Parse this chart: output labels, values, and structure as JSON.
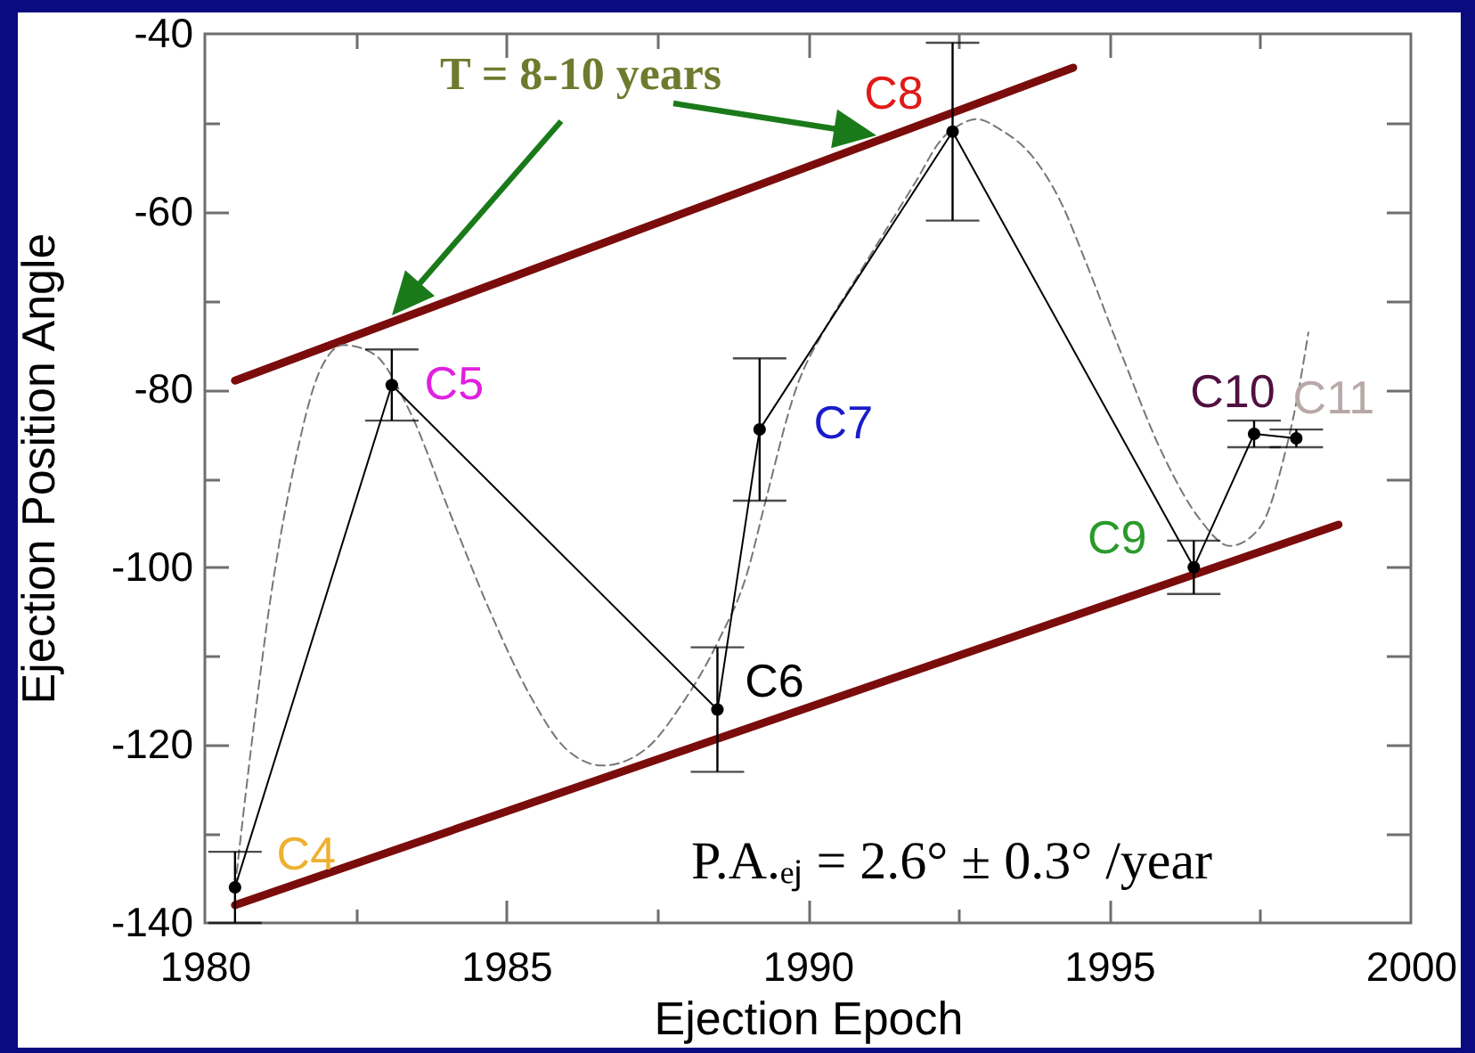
{
  "chart_data": {
    "type": "line",
    "xlabel": "Ejection Epoch",
    "ylabel": "Ejection Position Angle",
    "xlim": [
      1980,
      2000
    ],
    "ylim": [
      -140,
      -40
    ],
    "xticks": [
      1980,
      {
        "value": 1982.5,
        "label": null
      },
      1985,
      {
        "value": 1987.5,
        "label": null
      },
      1990,
      {
        "value": 1992.5,
        "label": null
      },
      1995,
      {
        "value": 1997.5,
        "label": null
      },
      2000
    ],
    "yticks": [
      -140,
      {
        "value": -130,
        "label": null
      },
      -120,
      {
        "value": -110,
        "label": null
      },
      -100,
      {
        "value": -90,
        "label": null
      },
      -80,
      {
        "value": -70,
        "label": null
      },
      -60,
      {
        "value": -50,
        "label": null
      },
      -40
    ],
    "grid": false,
    "series": [
      {
        "color": "#7b0c0c",
        "x": [
          1980.5,
          1994.4
        ],
        "values": [
          -79,
          -43.8
        ]
      },
      {
        "color": "#7b0c0c",
        "x": [
          1980.5,
          1998.8
        ],
        "values": [
          -138,
          -95.2
        ]
      },
      {
        "color": "#777777",
        "line_style": "dashed",
        "x": [
          1980.5,
          1980.8,
          1981.1,
          1981.5,
          1981.9,
          1982.3,
          1982.8,
          1983.4,
          1984.1,
          1984.7,
          1985.4,
          1986,
          1986.6,
          1987.3,
          1987.9,
          1988.5,
          1989,
          1989.3,
          1989.8,
          1990.3,
          1990.8,
          1991.3,
          1991.8,
          1992.2,
          1992.5,
          1992.8,
          1993.2,
          1993.7,
          1994.2,
          1994.6,
          1995.2,
          1995.9,
          1996.5,
          1997,
          1997.5,
          1997.9,
          1998.1,
          1998.3
        ],
        "values": [
          -136,
          -118.5,
          -103,
          -88,
          -78,
          -75,
          -76,
          -82.5,
          -94.5,
          -104.5,
          -114.5,
          -120.5,
          -122.3,
          -120.5,
          -115.5,
          -108.5,
          -100.5,
          -92.5,
          -80,
          -73,
          -67.5,
          -62,
          -56.5,
          -52,
          -50.3,
          -49.6,
          -50.8,
          -53.6,
          -59,
          -65.5,
          -76,
          -87.5,
          -94.6,
          -97.6,
          -95.5,
          -87.5,
          -81.5,
          -73.6
        ]
      },
      {
        "color": "#000000",
        "marker": "circle",
        "x": [
          1980.5,
          1983.1,
          1988.5,
          1989.2,
          1992.4,
          1996.4,
          1997.4,
          1998.1
        ],
        "values": [
          -136,
          -79.5,
          -116,
          -84.5,
          -51,
          -100,
          -85,
          -85.5
        ],
        "errors": [
          4,
          4,
          7,
          8,
          10,
          3,
          1.5,
          1
        ]
      }
    ],
    "annotations": [
      {
        "text": "C4",
        "x": 1980.5,
        "y": -136
      },
      {
        "text": "C5",
        "x": 1983.1,
        "y": -79.5
      },
      {
        "text": "C6",
        "x": 1988.5,
        "y": -116
      },
      {
        "text": "C7",
        "x": 1989.2,
        "y": -84.5
      },
      {
        "text": "C8",
        "x": 1992.4,
        "y": -51
      },
      {
        "text": "C9",
        "x": 1996.4,
        "y": -100
      },
      {
        "text": "C10",
        "x": 1997.4,
        "y": -85
      },
      {
        "text": "C11",
        "x": 1998.1,
        "y": -85.5
      },
      "T = 8-10 years",
      "P.A.ₑⱼ = 2.6° ± 0.3° /year"
    ]
  }
}
